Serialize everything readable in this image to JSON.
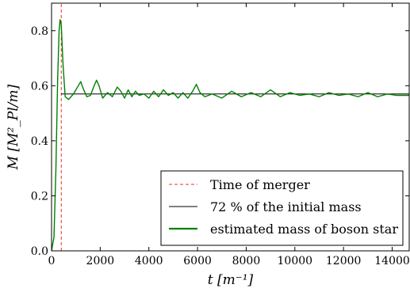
{
  "chart_data": {
    "type": "line",
    "xlabel": "t [m⁻¹]",
    "ylabel": "M [M²_Pl/m]",
    "xlim": [
      0,
      14700
    ],
    "ylim": [
      0,
      0.9
    ],
    "x_ticks": [
      0,
      2000,
      4000,
      6000,
      8000,
      10000,
      12000,
      14000
    ],
    "x_tick_labels": [
      "0",
      "2000",
      "4000",
      "6000",
      "8000",
      "10000",
      "12000",
      "14000"
    ],
    "y_ticks": [
      0.0,
      0.2,
      0.4,
      0.6,
      0.8
    ],
    "y_tick_labels": [
      "0.0",
      "0.2",
      "0.4",
      "0.6",
      "0.8"
    ],
    "grid": false,
    "legend_position": "lower-right",
    "series": [
      {
        "name": "Time of merger",
        "style": "dashed",
        "color": "#e8312a",
        "x": [
          400,
          400
        ],
        "y": [
          0,
          0.9
        ]
      },
      {
        "name": "72 % of the initial mass",
        "style": "solid",
        "color": "#000000",
        "x": [
          400,
          14700
        ],
        "y": [
          0.57,
          0.57
        ]
      },
      {
        "name": "estimated mass of boson star",
        "style": "solid",
        "color": "#008000",
        "x": [
          0,
          100,
          180,
          250,
          310,
          350,
          400,
          470,
          560,
          700,
          900,
          1100,
          1200,
          1300,
          1450,
          1600,
          1750,
          1850,
          1950,
          2100,
          2300,
          2500,
          2700,
          2850,
          3000,
          3150,
          3300,
          3450,
          3600,
          3800,
          4000,
          4200,
          4400,
          4600,
          4800,
          5000,
          5200,
          5400,
          5600,
          5800,
          5950,
          6100,
          6300,
          6600,
          7000,
          7400,
          7800,
          8200,
          8600,
          9000,
          9400,
          9800,
          10200,
          10600,
          11000,
          11400,
          11800,
          12200,
          12600,
          13000,
          13400,
          13800,
          14200,
          14700
        ],
        "y": [
          0.0,
          0.05,
          0.3,
          0.62,
          0.8,
          0.84,
          0.82,
          0.68,
          0.56,
          0.55,
          0.57,
          0.6,
          0.615,
          0.59,
          0.56,
          0.565,
          0.6,
          0.62,
          0.6,
          0.555,
          0.575,
          0.56,
          0.595,
          0.58,
          0.555,
          0.585,
          0.56,
          0.58,
          0.565,
          0.57,
          0.555,
          0.58,
          0.56,
          0.585,
          0.565,
          0.575,
          0.555,
          0.575,
          0.555,
          0.58,
          0.605,
          0.575,
          0.56,
          0.57,
          0.555,
          0.58,
          0.56,
          0.575,
          0.56,
          0.585,
          0.56,
          0.575,
          0.565,
          0.57,
          0.56,
          0.575,
          0.565,
          0.57,
          0.56,
          0.575,
          0.56,
          0.57,
          0.565,
          0.565
        ]
      }
    ]
  }
}
